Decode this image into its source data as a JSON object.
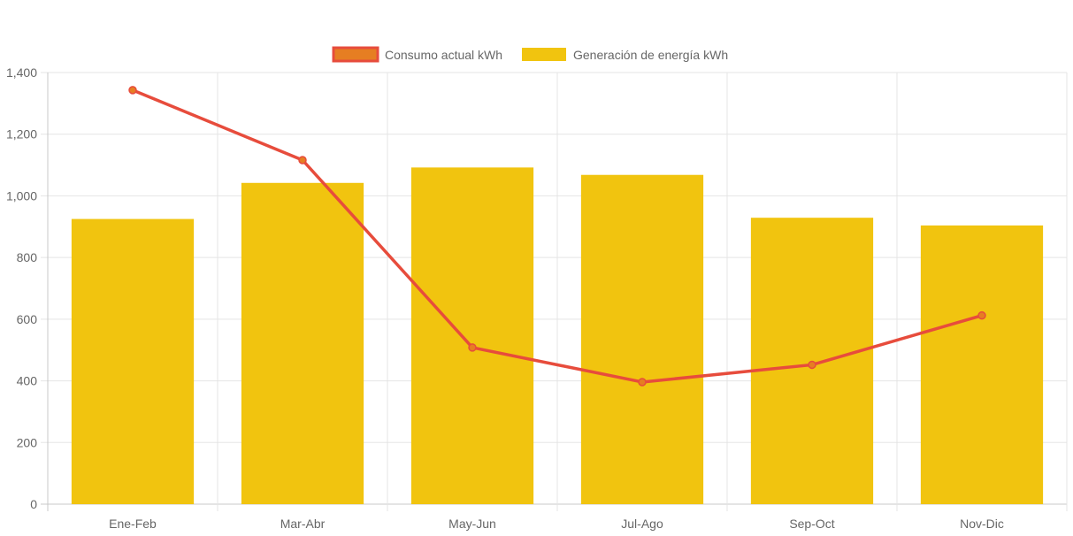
{
  "chart_data": {
    "type": "bar",
    "categories": [
      "Ene-Feb",
      "Mar-Abr",
      "May-Jun",
      "Jul-Ago",
      "Sep-Oct",
      "Nov-Dic"
    ],
    "series": [
      {
        "name": "Consumo actual kWh",
        "type": "line",
        "values": [
          1343,
          1116,
          508,
          396,
          452,
          612
        ],
        "color": "#e74c3c",
        "point_color": "#e67e22"
      },
      {
        "name": "Generación de energía kWh",
        "type": "bar",
        "values": [
          925,
          1042,
          1092,
          1068,
          929,
          904
        ],
        "color": "#f1c40f"
      }
    ],
    "ylim": [
      0,
      1400
    ],
    "yticks": [
      "0",
      "200",
      "400",
      "600",
      "800",
      "1,000",
      "1,200",
      "1,400"
    ],
    "ytick_values": [
      0,
      200,
      400,
      600,
      800,
      1000,
      1200,
      1400
    ],
    "legend_position": "top-center",
    "grid": true,
    "xlabel": "",
    "ylabel": "",
    "grid_color": "#e5e5e5",
    "axis_color": "#c8c8c8"
  }
}
